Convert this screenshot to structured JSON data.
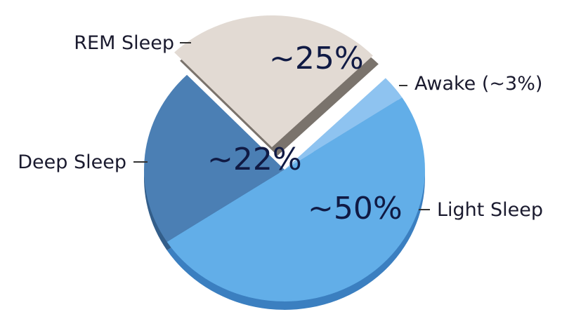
{
  "chart_data": {
    "type": "pie",
    "title": "",
    "slices": [
      {
        "label": "Awake (~3%)",
        "value": 3,
        "value_label": "",
        "color": "#8ec3f0",
        "side_color": "#5e9fd6"
      },
      {
        "label": "Light Sleep",
        "value": 50,
        "value_label": "~50%",
        "color": "#62aee8",
        "side_color": "#3b7fc0"
      },
      {
        "label": "Deep Sleep",
        "value": 22,
        "value_label": "~22%",
        "color": "#4b7fb4",
        "side_color": "#335e8a"
      },
      {
        "label": "REM Sleep",
        "value": 25,
        "value_label": "~25%",
        "color": "#e2dad3",
        "side_color": "#7a736c",
        "exploded": true
      }
    ],
    "legend": "none; labels placed beside slices with leader lines"
  }
}
